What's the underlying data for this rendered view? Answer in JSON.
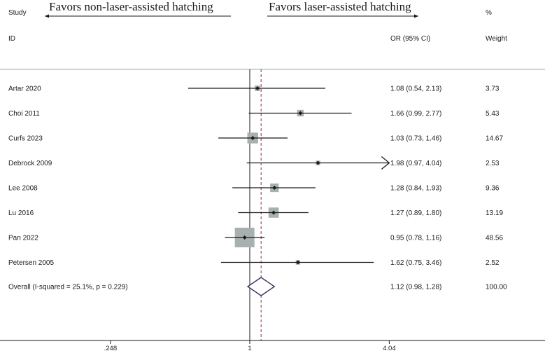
{
  "chart_data": {
    "type": "forest",
    "favors_left": "Favors non-laser-assisted hatching",
    "favors_right": "Favors laser-assisted hatching",
    "header": {
      "study": "Study",
      "id": "ID",
      "effect": "OR (95% CI)",
      "pct": "%",
      "weight": "Weight"
    },
    "x_scale": "log",
    "x_ticks": [
      {
        "value": 0.248,
        "label": ".248"
      },
      {
        "value": 1,
        "label": "1"
      },
      {
        "value": 4.04,
        "label": "4.04"
      }
    ],
    "xlim": [
      0.248,
      4.04
    ],
    "null_value": 1,
    "studies": [
      {
        "name": "Artar 2020",
        "or": 1.08,
        "lo": 0.54,
        "hi": 2.13,
        "ci_text": "1.08 (0.54, 2.13)",
        "weight": 3.73,
        "weight_text": "3.73"
      },
      {
        "name": "Choi 2011",
        "or": 1.66,
        "lo": 0.99,
        "hi": 2.77,
        "ci_text": "1.66 (0.99, 2.77)",
        "weight": 5.43,
        "weight_text": "5.43"
      },
      {
        "name": "Curfs 2023",
        "or": 1.03,
        "lo": 0.73,
        "hi": 1.46,
        "ci_text": "1.03 (0.73, 1.46)",
        "weight": 14.67,
        "weight_text": "14.67"
      },
      {
        "name": "Debrock 2009",
        "or": 1.98,
        "lo": 0.97,
        "hi": 4.04,
        "ci_text": "1.98 (0.97, 4.04)",
        "weight": 2.53,
        "weight_text": "2.53",
        "arrow_right": true
      },
      {
        "name": "Lee 2008",
        "or": 1.28,
        "lo": 0.84,
        "hi": 1.93,
        "ci_text": "1.28 (0.84, 1.93)",
        "weight": 9.36,
        "weight_text": "9.36"
      },
      {
        "name": "Lu 2016",
        "or": 1.27,
        "lo": 0.89,
        "hi": 1.8,
        "ci_text": "1.27 (0.89, 1.80)",
        "weight": 13.19,
        "weight_text": "13.19"
      },
      {
        "name": "Pan 2022",
        "or": 0.95,
        "lo": 0.78,
        "hi": 1.16,
        "ci_text": "0.95 (0.78, 1.16)",
        "weight": 48.56,
        "weight_text": "48.56"
      },
      {
        "name": "Petersen 2005",
        "or": 1.62,
        "lo": 0.75,
        "hi": 3.46,
        "ci_text": "1.62 (0.75, 3.46)",
        "weight": 2.52,
        "weight_text": "2.52"
      }
    ],
    "overall": {
      "label": "Overall  (I-squared = 25.1%, p = 0.229)",
      "or": 1.12,
      "lo": 0.98,
      "hi": 1.28,
      "ci_text": "1.12 (0.98, 1.28)",
      "weight_text": "100.00"
    },
    "colors": {
      "line": "#1a1a1a",
      "box": "#a9b0b0",
      "diamond": "#3b3160",
      "reference": "#8b2a3a",
      "separator": "#b7c7cc"
    }
  }
}
